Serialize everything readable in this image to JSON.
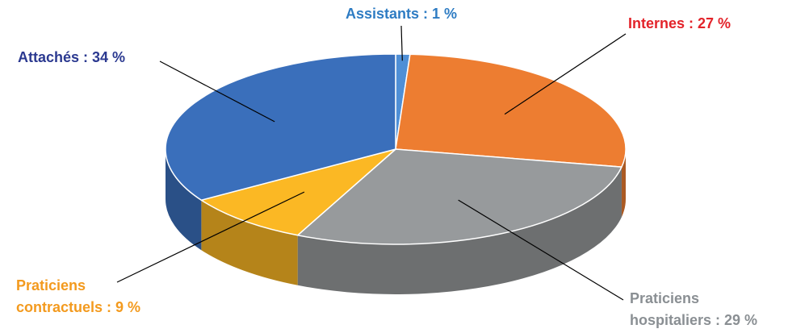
{
  "chart_data": {
    "type": "pie",
    "categories": null,
    "values": [
      1,
      27,
      29,
      9,
      34
    ],
    "value_labels": [
      [
        "Assistants : 1 %"
      ],
      [
        "Internes : 27 %"
      ],
      [
        "Praticiens",
        "hospitaliers : 29 %"
      ],
      [
        "Praticiens",
        "contractuels : 9 %"
      ],
      [
        "Attachés : 34 %"
      ]
    ],
    "colors": [
      "#4f8fd6",
      "#ed7d31",
      "#979a9c",
      "#fbb824",
      "#3a6fbb"
    ],
    "label_colors": [
      "#2e7cc3",
      "#e3232a",
      "#8a8f93",
      "#f39a1e",
      "#2b3990"
    ]
  }
}
